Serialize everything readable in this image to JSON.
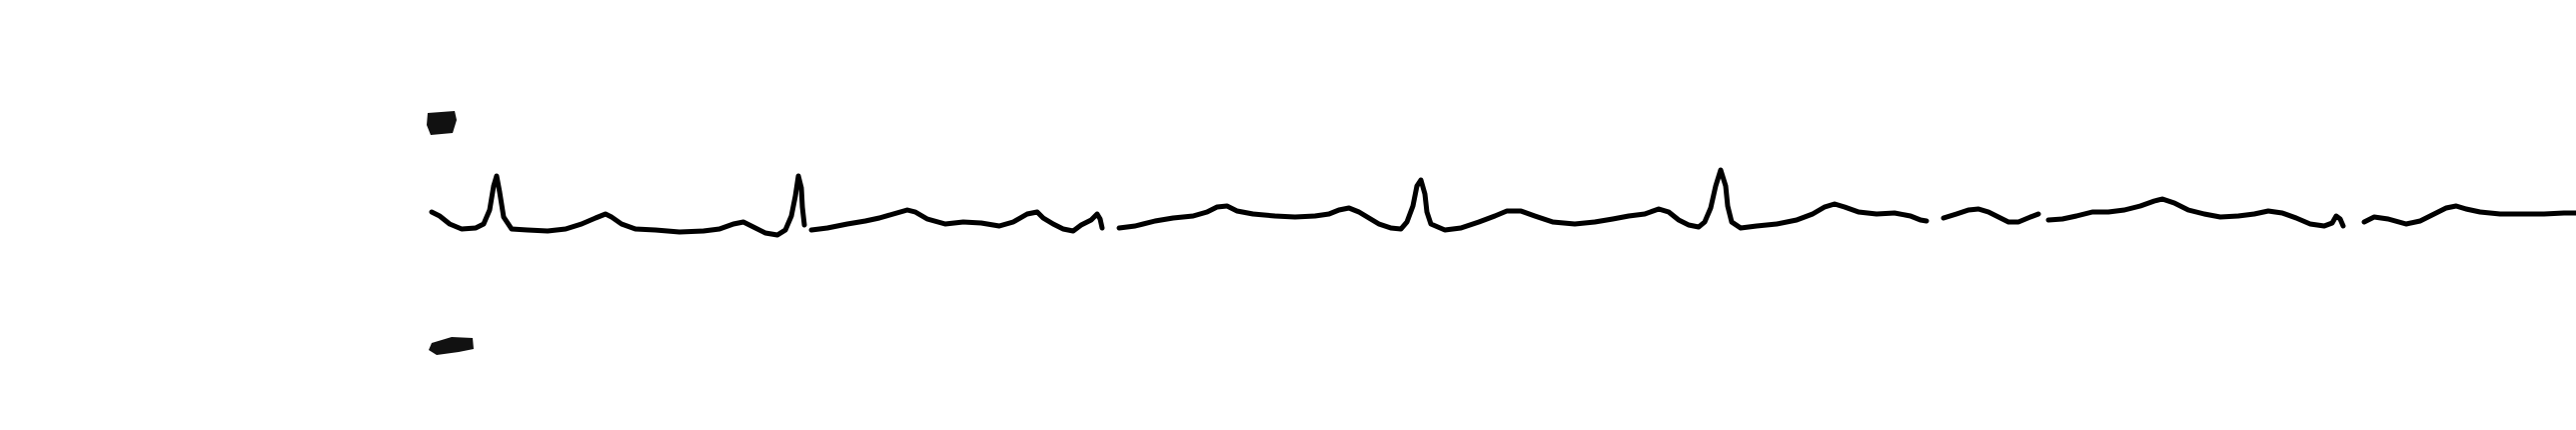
{
  "strip": {
    "background": "#ffffff",
    "trace_color": "#000000",
    "marker_color": "#111111",
    "beat_count": 6,
    "rhythm": "irregular"
  }
}
